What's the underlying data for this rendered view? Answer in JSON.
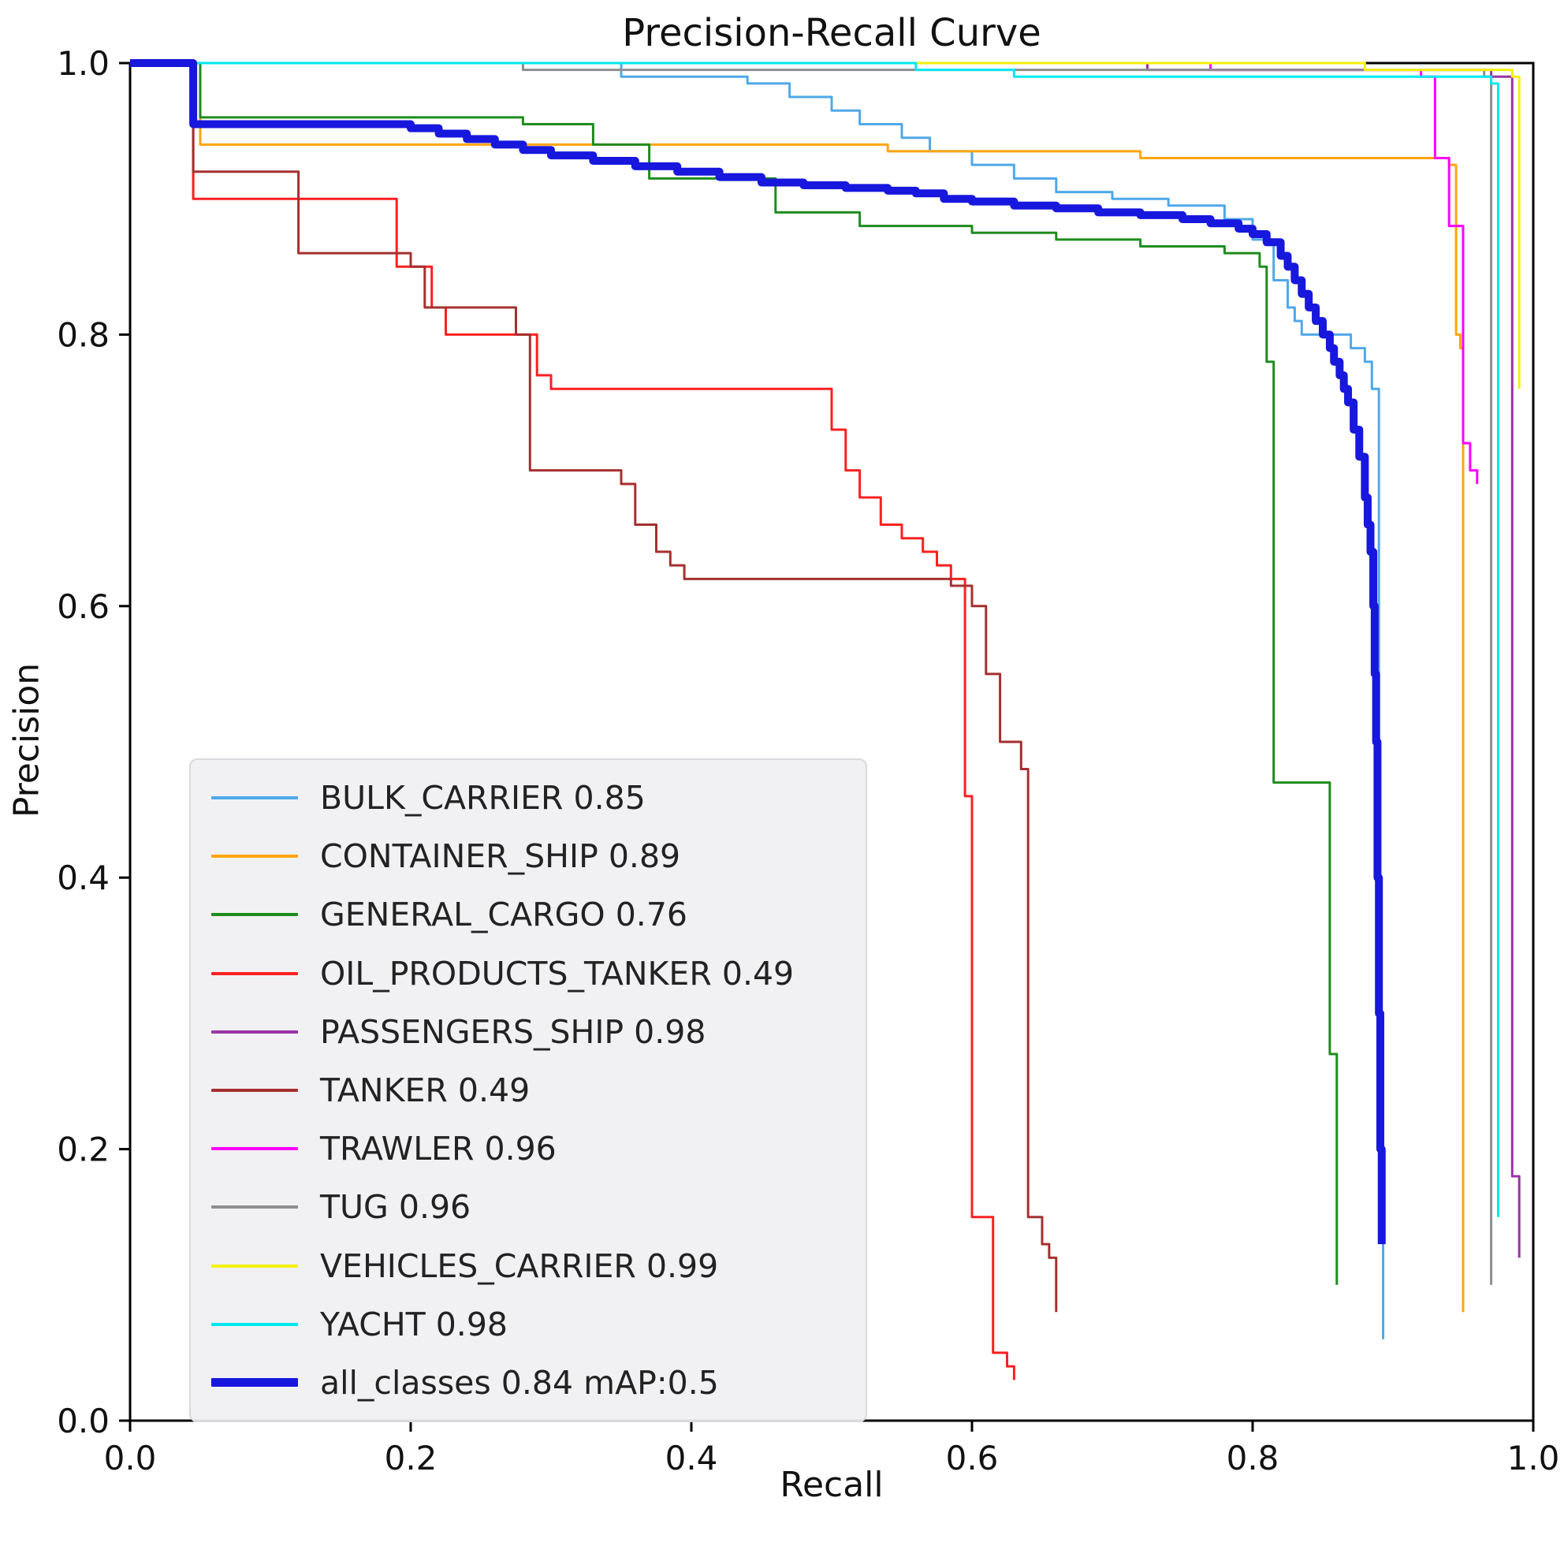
{
  "chart_data": {
    "type": "line",
    "title": "Precision-Recall Curve",
    "xlabel": "Recall",
    "ylabel": "Precision",
    "xlim": [
      0.0,
      1.0
    ],
    "ylim": [
      0.0,
      1.0
    ],
    "xticks": [
      0.0,
      0.2,
      0.4,
      0.6,
      0.8,
      1.0
    ],
    "yticks": [
      0.0,
      0.2,
      0.4,
      0.6,
      0.8,
      1.0
    ],
    "grid": false,
    "legend_position": "lower left",
    "line_style": "step-post",
    "series": [
      {
        "name": "BULK_CARRIER 0.85",
        "color": "#4fa8e8",
        "width": 3,
        "points": [
          [
            0,
            1.0
          ],
          [
            0.35,
            0.99
          ],
          [
            0.44,
            0.985
          ],
          [
            0.47,
            0.975
          ],
          [
            0.5,
            0.965
          ],
          [
            0.52,
            0.955
          ],
          [
            0.55,
            0.945
          ],
          [
            0.57,
            0.935
          ],
          [
            0.6,
            0.925
          ],
          [
            0.63,
            0.915
          ],
          [
            0.66,
            0.905
          ],
          [
            0.7,
            0.9
          ],
          [
            0.74,
            0.895
          ],
          [
            0.78,
            0.885
          ],
          [
            0.8,
            0.87
          ],
          [
            0.815,
            0.84
          ],
          [
            0.825,
            0.82
          ],
          [
            0.83,
            0.81
          ],
          [
            0.835,
            0.8
          ],
          [
            0.87,
            0.79
          ],
          [
            0.88,
            0.78
          ],
          [
            0.885,
            0.76
          ],
          [
            0.89,
            0.3
          ],
          [
            0.893,
            0.06
          ]
        ]
      },
      {
        "name": "CONTAINER_SHIP 0.89",
        "color": "#ffa510",
        "width": 3,
        "points": [
          [
            0,
            1.0
          ],
          [
            0.05,
            0.94
          ],
          [
            0.54,
            0.935
          ],
          [
            0.72,
            0.93
          ],
          [
            0.94,
            0.925
          ],
          [
            0.945,
            0.8
          ],
          [
            0.948,
            0.79
          ],
          [
            0.95,
            0.08
          ]
        ]
      },
      {
        "name": "GENERAL_CARGO 0.76",
        "color": "#1e8c1e",
        "width": 3,
        "points": [
          [
            0,
            1.0
          ],
          [
            0.05,
            0.96
          ],
          [
            0.28,
            0.955
          ],
          [
            0.33,
            0.94
          ],
          [
            0.37,
            0.915
          ],
          [
            0.46,
            0.89
          ],
          [
            0.52,
            0.88
          ],
          [
            0.6,
            0.875
          ],
          [
            0.66,
            0.87
          ],
          [
            0.72,
            0.865
          ],
          [
            0.78,
            0.86
          ],
          [
            0.805,
            0.85
          ],
          [
            0.81,
            0.78
          ],
          [
            0.815,
            0.47
          ],
          [
            0.85,
            0.47
          ],
          [
            0.855,
            0.27
          ],
          [
            0.86,
            0.1
          ]
        ]
      },
      {
        "name": "OIL_PRODUCTS_TANKER 0.49",
        "color": "#fb2020",
        "width": 3,
        "points": [
          [
            0,
            1.0
          ],
          [
            0.045,
            0.9
          ],
          [
            0.19,
            0.85
          ],
          [
            0.215,
            0.82
          ],
          [
            0.225,
            0.8
          ],
          [
            0.29,
            0.77
          ],
          [
            0.3,
            0.76
          ],
          [
            0.5,
            0.73
          ],
          [
            0.51,
            0.7
          ],
          [
            0.52,
            0.68
          ],
          [
            0.535,
            0.66
          ],
          [
            0.55,
            0.65
          ],
          [
            0.565,
            0.64
          ],
          [
            0.575,
            0.63
          ],
          [
            0.585,
            0.62
          ],
          [
            0.595,
            0.46
          ],
          [
            0.6,
            0.15
          ],
          [
            0.615,
            0.05
          ],
          [
            0.625,
            0.04
          ],
          [
            0.63,
            0.03
          ]
        ]
      },
      {
        "name": "PASSENGERS_SHIP 0.98",
        "color": "#9a32a8",
        "width": 3,
        "points": [
          [
            0,
            1.0
          ],
          [
            0.725,
            0.995
          ],
          [
            0.97,
            0.99
          ],
          [
            0.985,
            0.18
          ],
          [
            0.99,
            0.12
          ]
        ]
      },
      {
        "name": "TANKER 0.49",
        "color": "#a53030",
        "width": 3,
        "points": [
          [
            0,
            1.0
          ],
          [
            0.045,
            0.92
          ],
          [
            0.12,
            0.86
          ],
          [
            0.2,
            0.85
          ],
          [
            0.21,
            0.82
          ],
          [
            0.275,
            0.8
          ],
          [
            0.285,
            0.7
          ],
          [
            0.35,
            0.69
          ],
          [
            0.36,
            0.66
          ],
          [
            0.375,
            0.64
          ],
          [
            0.385,
            0.63
          ],
          [
            0.395,
            0.62
          ],
          [
            0.585,
            0.615
          ],
          [
            0.6,
            0.6
          ],
          [
            0.61,
            0.55
          ],
          [
            0.62,
            0.5
          ],
          [
            0.635,
            0.48
          ],
          [
            0.64,
            0.15
          ],
          [
            0.65,
            0.13
          ],
          [
            0.655,
            0.12
          ],
          [
            0.66,
            0.08
          ]
        ]
      },
      {
        "name": "TRAWLER 0.96",
        "color": "#ff00ff",
        "width": 3,
        "points": [
          [
            0,
            1.0
          ],
          [
            0.77,
            0.995
          ],
          [
            0.92,
            0.99
          ],
          [
            0.93,
            0.93
          ],
          [
            0.94,
            0.88
          ],
          [
            0.95,
            0.72
          ],
          [
            0.955,
            0.7
          ],
          [
            0.96,
            0.69
          ]
        ]
      },
      {
        "name": "TUG 0.96",
        "color": "#8e8e8e",
        "width": 3,
        "points": [
          [
            0,
            1.0
          ],
          [
            0.28,
            0.995
          ],
          [
            0.965,
            0.99
          ],
          [
            0.97,
            0.1
          ]
        ]
      },
      {
        "name": "VEHICLES_CARRIER 0.99",
        "color": "#f2f208",
        "width": 3,
        "points": [
          [
            0,
            1.0
          ],
          [
            0.88,
            0.995
          ],
          [
            0.985,
            0.99
          ],
          [
            0.99,
            0.76
          ]
        ]
      },
      {
        "name": "YACHT 0.98",
        "color": "#00e8f0",
        "width": 3,
        "points": [
          [
            0,
            1.0
          ],
          [
            0.56,
            0.995
          ],
          [
            0.63,
            0.99
          ],
          [
            0.97,
            0.985
          ],
          [
            0.975,
            0.15
          ]
        ]
      },
      {
        "name": "all_classes 0.84 mAP:0.5",
        "color": "#1717dd",
        "width": 10,
        "points": [
          [
            0,
            1.0
          ],
          [
            0.045,
            0.955
          ],
          [
            0.2,
            0.952
          ],
          [
            0.22,
            0.948
          ],
          [
            0.24,
            0.944
          ],
          [
            0.26,
            0.94
          ],
          [
            0.28,
            0.936
          ],
          [
            0.3,
            0.932
          ],
          [
            0.33,
            0.928
          ],
          [
            0.36,
            0.924
          ],
          [
            0.39,
            0.92
          ],
          [
            0.42,
            0.916
          ],
          [
            0.45,
            0.912
          ],
          [
            0.48,
            0.91
          ],
          [
            0.51,
            0.908
          ],
          [
            0.54,
            0.906
          ],
          [
            0.56,
            0.904
          ],
          [
            0.58,
            0.9
          ],
          [
            0.6,
            0.898
          ],
          [
            0.63,
            0.895
          ],
          [
            0.66,
            0.893
          ],
          [
            0.69,
            0.89
          ],
          [
            0.72,
            0.888
          ],
          [
            0.75,
            0.885
          ],
          [
            0.77,
            0.882
          ],
          [
            0.79,
            0.878
          ],
          [
            0.8,
            0.874
          ],
          [
            0.81,
            0.868
          ],
          [
            0.82,
            0.858
          ],
          [
            0.825,
            0.85
          ],
          [
            0.83,
            0.84
          ],
          [
            0.835,
            0.83
          ],
          [
            0.84,
            0.82
          ],
          [
            0.845,
            0.81
          ],
          [
            0.85,
            0.8
          ],
          [
            0.855,
            0.79
          ],
          [
            0.858,
            0.78
          ],
          [
            0.862,
            0.77
          ],
          [
            0.865,
            0.76
          ],
          [
            0.868,
            0.75
          ],
          [
            0.872,
            0.73
          ],
          [
            0.876,
            0.71
          ],
          [
            0.88,
            0.68
          ],
          [
            0.882,
            0.66
          ],
          [
            0.884,
            0.64
          ],
          [
            0.886,
            0.6
          ],
          [
            0.887,
            0.55
          ],
          [
            0.888,
            0.5
          ],
          [
            0.889,
            0.4
          ],
          [
            0.89,
            0.3
          ],
          [
            0.891,
            0.2
          ],
          [
            0.892,
            0.13
          ]
        ]
      }
    ]
  }
}
